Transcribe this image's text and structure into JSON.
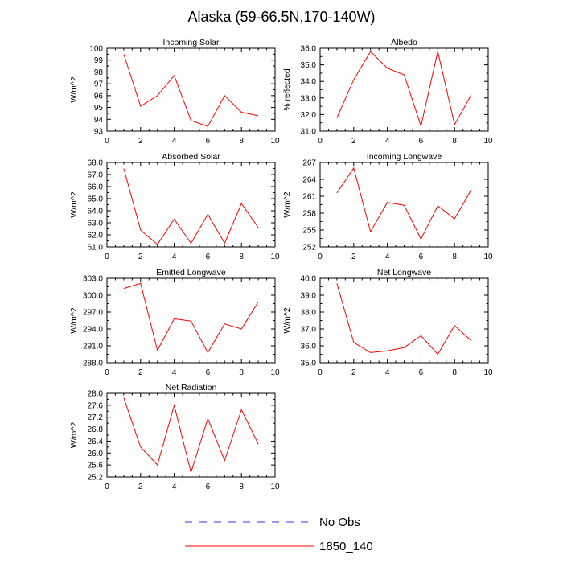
{
  "figure": {
    "title": "Alaska (59-66.5N,170-140W)"
  },
  "chart_data": [
    {
      "type": "line",
      "title": "Incoming Solar",
      "xlabel": "",
      "ylabel": "W/m^2",
      "xlim": [
        0,
        10
      ],
      "ylim": [
        93,
        100
      ],
      "x_ticks": [
        0,
        2,
        4,
        6,
        8,
        10
      ],
      "x_tick_labels": [
        "0",
        "2",
        "4",
        "6",
        "8",
        "10"
      ],
      "y_ticks": [
        93,
        94,
        95,
        96,
        97,
        98,
        99,
        100
      ],
      "y_tick_labels": [
        "93",
        "94",
        "95",
        "96",
        "97",
        "98",
        "99",
        "100"
      ],
      "x": [
        1,
        2,
        3,
        4,
        5,
        6,
        7,
        8,
        9
      ],
      "series": [
        {
          "name": "1850_140",
          "color": "#ff0000",
          "values": [
            99.5,
            95.1,
            96.0,
            97.7,
            93.9,
            93.4,
            96.0,
            94.6,
            94.3
          ]
        }
      ]
    },
    {
      "type": "line",
      "title": "Albedo",
      "xlabel": "",
      "ylabel": "% reflected",
      "xlim": [
        0,
        10
      ],
      "ylim": [
        31,
        36
      ],
      "x_ticks": [
        0,
        2,
        4,
        6,
        8,
        10
      ],
      "x_tick_labels": [
        "0",
        "2",
        "4",
        "6",
        "8",
        "10"
      ],
      "y_ticks": [
        31,
        32,
        33,
        34,
        35,
        36
      ],
      "y_tick_labels": [
        "31.0",
        "32.0",
        "33.0",
        "34.0",
        "35.0",
        "36.0"
      ],
      "x": [
        1,
        2,
        3,
        4,
        5,
        6,
        7,
        8,
        9
      ],
      "series": [
        {
          "name": "1850_140",
          "color": "#ff0000",
          "values": [
            31.8,
            34.1,
            35.8,
            34.8,
            34.4,
            31.3,
            35.8,
            31.4,
            33.2
          ]
        }
      ]
    },
    {
      "type": "line",
      "title": "Absorbed Solar",
      "xlabel": "",
      "ylabel": "W/m^2",
      "xlim": [
        0,
        10
      ],
      "ylim": [
        61,
        68
      ],
      "x_ticks": [
        0,
        2,
        4,
        6,
        8,
        10
      ],
      "x_tick_labels": [
        "0",
        "2",
        "4",
        "6",
        "8",
        "10"
      ],
      "y_ticks": [
        61,
        62,
        63,
        64,
        65,
        66,
        67,
        68
      ],
      "y_tick_labels": [
        "61.0",
        "62.0",
        "63.0",
        "64.0",
        "65.0",
        "66.0",
        "67.0",
        "68.0"
      ],
      "x": [
        1,
        2,
        3,
        4,
        5,
        6,
        7,
        8,
        9
      ],
      "series": [
        {
          "name": "1850_140",
          "color": "#ff0000",
          "values": [
            67.5,
            62.4,
            61.2,
            63.3,
            61.3,
            63.7,
            61.3,
            64.6,
            62.6
          ]
        }
      ]
    },
    {
      "type": "line",
      "title": "Incoming Longwave",
      "xlabel": "",
      "ylabel": "W/m^2",
      "xlim": [
        0,
        10
      ],
      "ylim": [
        252,
        267
      ],
      "x_ticks": [
        0,
        2,
        4,
        6,
        8,
        10
      ],
      "x_tick_labels": [
        "0",
        "2",
        "4",
        "6",
        "8",
        "10"
      ],
      "y_ticks": [
        252,
        255,
        258,
        261,
        264,
        267
      ],
      "y_tick_labels": [
        "252",
        "255",
        "258",
        "261",
        "264",
        "267"
      ],
      "x": [
        1,
        2,
        3,
        4,
        5,
        6,
        7,
        8,
        9
      ],
      "series": [
        {
          "name": "1850_140",
          "color": "#ff0000",
          "values": [
            261.6,
            266.0,
            254.7,
            259.9,
            259.4,
            253.4,
            259.3,
            257.0,
            262.2
          ]
        }
      ]
    },
    {
      "type": "line",
      "title": "Emitted Longwave",
      "xlabel": "",
      "ylabel": "W/m^2",
      "xlim": [
        0,
        10
      ],
      "ylim": [
        288,
        303
      ],
      "x_ticks": [
        0,
        2,
        4,
        6,
        8,
        10
      ],
      "x_tick_labels": [
        "0",
        "2",
        "4",
        "6",
        "8",
        "10"
      ],
      "y_ticks": [
        288,
        291,
        294,
        297,
        300,
        303
      ],
      "y_tick_labels": [
        "288.0",
        "291.0",
        "294.0",
        "297.0",
        "300.0",
        "303.0"
      ],
      "x": [
        1,
        2,
        3,
        4,
        5,
        6,
        7,
        8,
        9
      ],
      "series": [
        {
          "name": "1850_140",
          "color": "#ff0000",
          "values": [
            301.2,
            302.1,
            290.2,
            295.8,
            295.4,
            289.8,
            294.9,
            294.0,
            298.8
          ]
        }
      ]
    },
    {
      "type": "line",
      "title": "Net Longwave",
      "xlabel": "",
      "ylabel": "W/m^2",
      "xlim": [
        0,
        10
      ],
      "ylim": [
        35,
        40
      ],
      "x_ticks": [
        0,
        2,
        4,
        6,
        8,
        10
      ],
      "x_tick_labels": [
        "0",
        "2",
        "4",
        "6",
        "8",
        "10"
      ],
      "y_ticks": [
        35,
        36,
        37,
        38,
        39,
        40
      ],
      "y_tick_labels": [
        "35.0",
        "36.0",
        "37.0",
        "38.0",
        "39.0",
        "40.0"
      ],
      "x": [
        1,
        2,
        3,
        4,
        5,
        6,
        7,
        8,
        9
      ],
      "series": [
        {
          "name": "1850_140",
          "color": "#ff0000",
          "values": [
            39.7,
            36.2,
            35.6,
            35.7,
            35.9,
            36.6,
            35.5,
            37.2,
            36.3
          ]
        }
      ]
    },
    {
      "type": "line",
      "title": "Net Radiation",
      "xlabel": "",
      "ylabel": "W/m^2",
      "xlim": [
        0,
        10
      ],
      "ylim": [
        25.2,
        28.0
      ],
      "x_ticks": [
        0,
        2,
        4,
        6,
        8,
        10
      ],
      "x_tick_labels": [
        "0",
        "2",
        "4",
        "6",
        "8",
        "10"
      ],
      "y_ticks": [
        25.2,
        25.6,
        26.0,
        26.4,
        26.8,
        27.2,
        27.6,
        28.0
      ],
      "y_tick_labels": [
        "25.2",
        "25.6",
        "26.0",
        "26.4",
        "26.8",
        "27.2",
        "27.6",
        "28.0"
      ],
      "x": [
        1,
        2,
        3,
        4,
        5,
        6,
        7,
        8,
        9
      ],
      "series": [
        {
          "name": "1850_140",
          "color": "#ff0000",
          "values": [
            27.85,
            26.2,
            25.6,
            27.6,
            25.35,
            27.15,
            25.75,
            27.45,
            26.3
          ]
        }
      ]
    }
  ],
  "legend": {
    "items": [
      {
        "label": "No Obs",
        "color": "#3333ff",
        "style": "dashed"
      },
      {
        "label": "1850_140",
        "color": "#ff0000",
        "style": "solid"
      }
    ]
  }
}
